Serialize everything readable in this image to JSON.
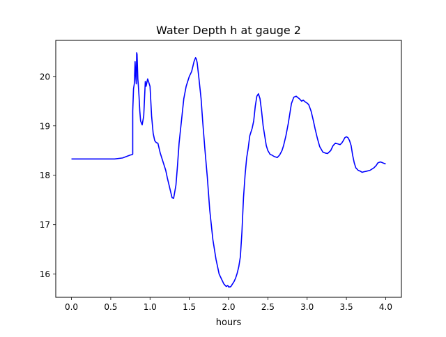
{
  "chart_data": {
    "type": "line",
    "title": "Water Depth h at gauge 2",
    "xlabel": "hours",
    "ylabel": "",
    "xlim": [
      -0.2,
      4.2
    ],
    "ylim": [
      15.53,
      20.73
    ],
    "xticks": [
      0.0,
      0.5,
      1.0,
      1.5,
      2.0,
      2.5,
      3.0,
      3.5,
      4.0
    ],
    "xtick_labels": [
      "0.0",
      "0.5",
      "1.0",
      "1.5",
      "2.0",
      "2.5",
      "3.0",
      "3.5",
      "4.0"
    ],
    "yticks": [
      16,
      17,
      18,
      19,
      20
    ],
    "ytick_labels": [
      "16",
      "17",
      "18",
      "19",
      "20"
    ],
    "grid": false,
    "series": [
      {
        "color": "#0000ff",
        "x": [
          0.0,
          0.2,
          0.4,
          0.55,
          0.65,
          0.7,
          0.75,
          0.775,
          0.78,
          0.78,
          0.79,
          0.8,
          0.81,
          0.82,
          0.825,
          0.83,
          0.835,
          0.84,
          0.845,
          0.85,
          0.86,
          0.87,
          0.88,
          0.9,
          0.92,
          0.94,
          0.95,
          0.96,
          0.97,
          0.98,
          0.99,
          1.0,
          1.02,
          1.04,
          1.06,
          1.08,
          1.1,
          1.13,
          1.15,
          1.18,
          1.2,
          1.22,
          1.25,
          1.28,
          1.3,
          1.33,
          1.35,
          1.37,
          1.4,
          1.43,
          1.46,
          1.48,
          1.5,
          1.53,
          1.56,
          1.58,
          1.59,
          1.6,
          1.62,
          1.65,
          1.67,
          1.7,
          1.73,
          1.76,
          1.8,
          1.84,
          1.88,
          1.91,
          1.94,
          1.97,
          1.99,
          2.0,
          2.02,
          2.03,
          2.05,
          2.07,
          2.09,
          2.11,
          2.13,
          2.15,
          2.17,
          2.19,
          2.21,
          2.23,
          2.25,
          2.27,
          2.3,
          2.32,
          2.34,
          2.36,
          2.38,
          2.4,
          2.42,
          2.44,
          2.46,
          2.48,
          2.5,
          2.53,
          2.55,
          2.58,
          2.6,
          2.62,
          2.65,
          2.68,
          2.7,
          2.73,
          2.76,
          2.8,
          2.83,
          2.86,
          2.9,
          2.93,
          2.95,
          2.98,
          3.0,
          3.02,
          3.05,
          3.08,
          3.1,
          3.13,
          3.16,
          3.2,
          3.23,
          3.26,
          3.3,
          3.33,
          3.36,
          3.4,
          3.42,
          3.44,
          3.46,
          3.48,
          3.5,
          3.52,
          3.54,
          3.56,
          3.58,
          3.6,
          3.62,
          3.65,
          3.68,
          3.7,
          3.72,
          3.75,
          3.8,
          3.85,
          3.88,
          3.9,
          3.93,
          3.95,
          3.98,
          4.0
        ],
        "y": [
          18.33,
          18.33,
          18.33,
          18.33,
          18.35,
          18.38,
          18.41,
          18.42,
          18.43,
          19.3,
          19.75,
          19.85,
          20.3,
          19.95,
          19.85,
          20.48,
          20.45,
          20.2,
          19.95,
          19.85,
          19.6,
          19.3,
          19.1,
          19.02,
          19.2,
          19.9,
          19.8,
          19.88,
          19.95,
          19.9,
          19.85,
          19.8,
          19.2,
          18.85,
          18.7,
          18.66,
          18.65,
          18.45,
          18.35,
          18.2,
          18.1,
          17.95,
          17.75,
          17.55,
          17.53,
          17.8,
          18.2,
          18.65,
          19.1,
          19.55,
          19.8,
          19.9,
          20.0,
          20.1,
          20.3,
          20.38,
          20.35,
          20.28,
          20.0,
          19.55,
          19.1,
          18.5,
          17.95,
          17.3,
          16.7,
          16.3,
          16.0,
          15.9,
          15.8,
          15.75,
          15.77,
          15.74,
          15.74,
          15.75,
          15.8,
          15.85,
          15.92,
          16.02,
          16.15,
          16.35,
          16.85,
          17.55,
          18.0,
          18.35,
          18.55,
          18.8,
          18.95,
          19.1,
          19.4,
          19.6,
          19.65,
          19.55,
          19.3,
          19.0,
          18.8,
          18.6,
          18.5,
          18.42,
          18.41,
          18.38,
          18.37,
          18.36,
          18.41,
          18.5,
          18.6,
          18.8,
          19.05,
          19.45,
          19.58,
          19.6,
          19.55,
          19.5,
          19.52,
          19.48,
          19.46,
          19.43,
          19.3,
          19.1,
          18.95,
          18.75,
          18.58,
          18.47,
          18.45,
          18.44,
          18.5,
          18.6,
          18.65,
          18.63,
          18.62,
          18.65,
          18.7,
          18.76,
          18.78,
          18.76,
          18.7,
          18.6,
          18.4,
          18.25,
          18.15,
          18.1,
          18.08,
          18.06,
          18.07,
          18.08,
          18.1,
          18.15,
          18.2,
          18.25,
          18.27,
          18.26,
          18.24,
          18.23
        ]
      }
    ]
  }
}
